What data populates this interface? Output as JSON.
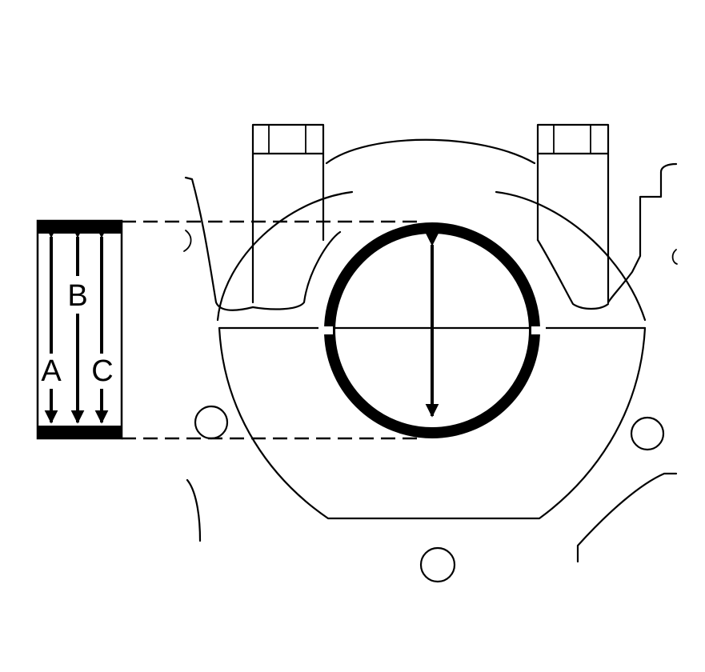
{
  "labels": {
    "a": "A",
    "b": "B",
    "c": "C"
  },
  "colors": {
    "line": "#000000",
    "background": "#ffffff"
  }
}
